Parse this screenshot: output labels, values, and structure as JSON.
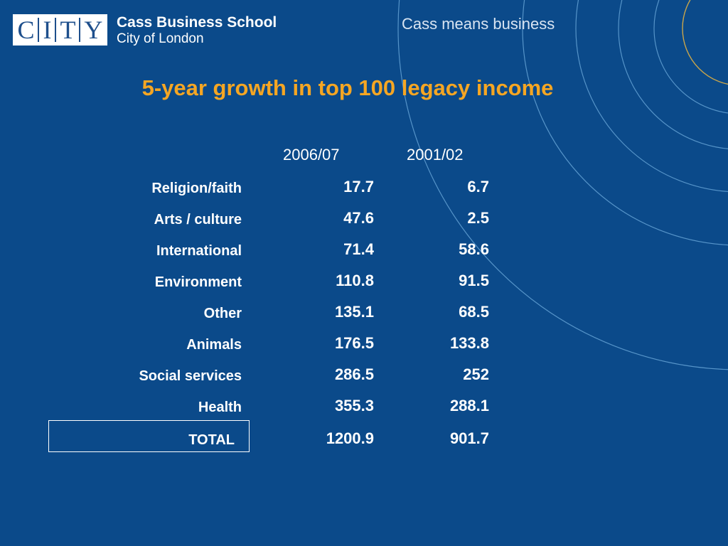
{
  "header": {
    "logo_letters": [
      "C",
      "I",
      "T",
      "Y"
    ],
    "school_name": "Cass Business School",
    "school_sub": "City of London",
    "tagline": "Cass means business"
  },
  "title": "5-year growth in top 100 legacy income",
  "table": {
    "columns": [
      "2006/07",
      "2001/02"
    ],
    "rows": [
      {
        "label": "Religion/faith",
        "v2006": "17.7",
        "v2001": "6.7"
      },
      {
        "label": "Arts / culture",
        "v2006": "47.6",
        "v2001": "2.5"
      },
      {
        "label": "International",
        "v2006": "71.4",
        "v2001": "58.6"
      },
      {
        "label": "Environment",
        "v2006": "110.8",
        "v2001": "91.5"
      },
      {
        "label": "Other",
        "v2006": "135.1",
        "v2001": "68.5"
      },
      {
        "label": "Animals",
        "v2006": "176.5",
        "v2001": "133.8"
      },
      {
        "label": "Social services",
        "v2006": "286.5",
        "v2001": "252"
      },
      {
        "label": "Health",
        "v2006": "355.3",
        "v2001": "288.1"
      }
    ],
    "total": {
      "label": "TOTAL",
      "v2006": "1200.9",
      "v2001": "901.7"
    }
  },
  "colors": {
    "background": "#0b4a8a",
    "title": "#f5a623",
    "arc_light": "#6fa8d6",
    "arc_gold": "#c9a54a"
  }
}
